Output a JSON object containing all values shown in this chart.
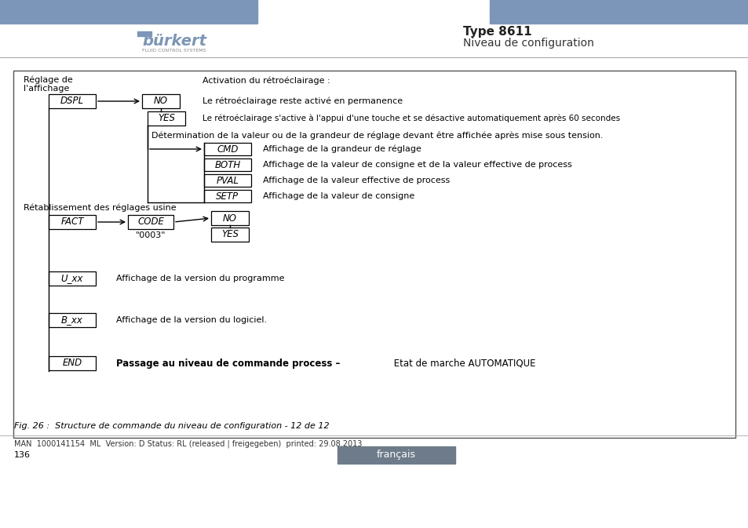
{
  "header_blue_color": "#7b96b8",
  "title_bold": "Type 8611",
  "title_sub": "Niveau de configuration",
  "footer_text": "MAN  1000141154  ML  Version: D Status: RL (released | freigegeben)  printed: 29.08.2013",
  "page_num": "136",
  "lang_label": "français",
  "lang_bg": "#6d7b8a",
  "fig_caption": "Fig. 26 :  Structure de commande du niveau de configuration - 12 de 12"
}
